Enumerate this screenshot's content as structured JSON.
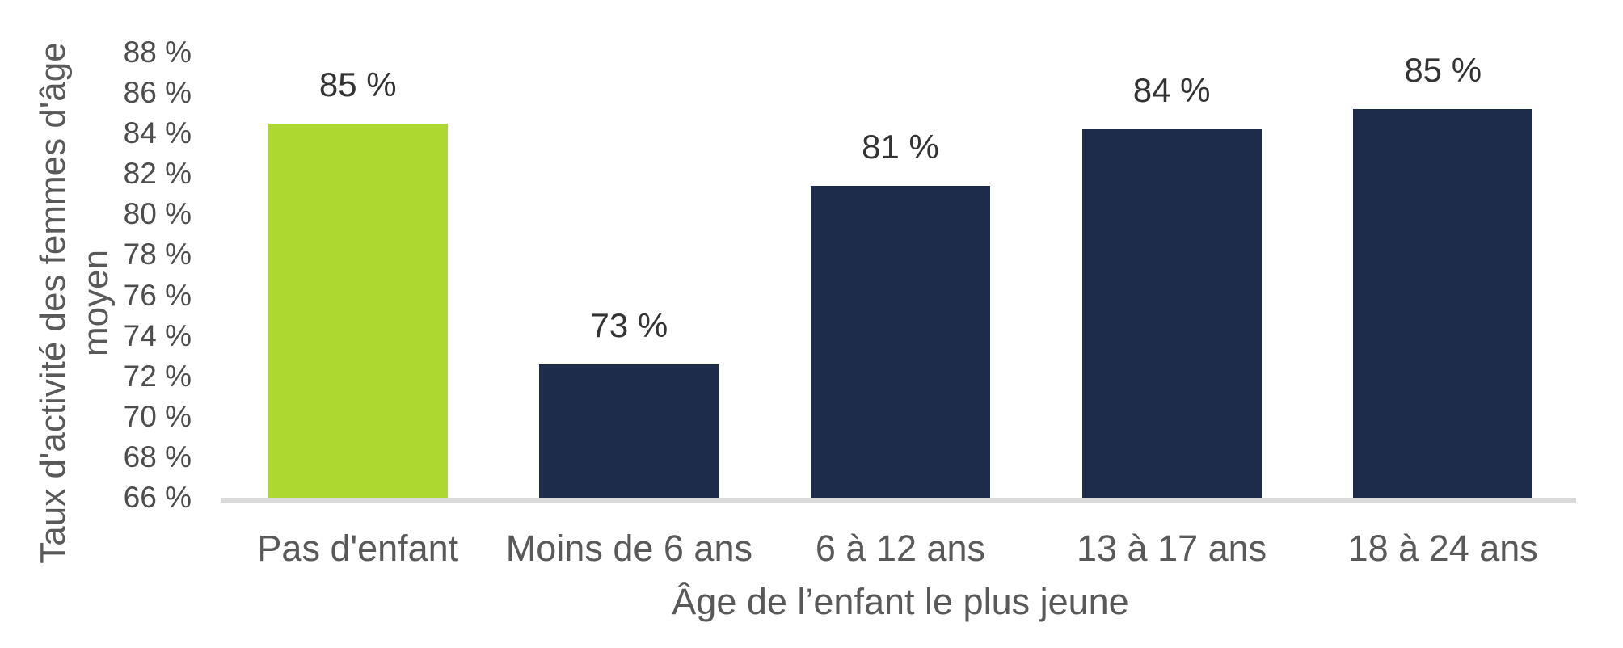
{
  "chart_data": {
    "type": "bar",
    "title": "",
    "categories": [
      "Pas d'enfant",
      "Moins de 6 ans",
      "6 à 12 ans",
      "13 à 17 ans",
      "18 à 24 ans"
    ],
    "values": [
      85,
      73,
      81,
      84,
      85
    ],
    "bar_heights_pct": [
      84.5,
      72.6,
      81.4,
      84.2,
      85.2
    ],
    "data_labels": [
      "85 %",
      "73 %",
      "81 %",
      "84 %",
      "85 %"
    ],
    "bar_colors": [
      "#ADD830",
      "#1E2C4C",
      "#1E2C4C",
      "#1E2C4C",
      "#1E2C4C"
    ],
    "highlight_color": "#ADD830",
    "series_color": "#1E2C4C",
    "axis_line_color": "#D9D9D9",
    "xlabel": "Âge de l’enfant le plus jeune",
    "ylabel": "Taux d'activité des femmes d'âge moyen",
    "ylabel_lines": [
      "Taux d'activité des femmes d'âge",
      "moyen"
    ],
    "ylim": [
      66,
      88
    ],
    "ytick_step": 2,
    "yticks": [
      "88 %",
      "86 %",
      "84 %",
      "82 %",
      "80 %",
      "78 %",
      "76 %",
      "74 %",
      "72 %",
      "70 %",
      "68 %",
      "66 %"
    ],
    "grid": false,
    "legend": false
  }
}
